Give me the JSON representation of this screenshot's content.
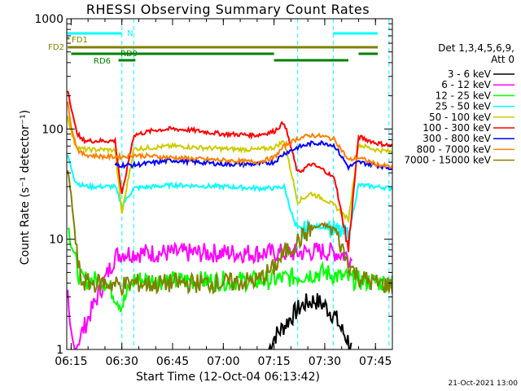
{
  "chart_data": {
    "type": "line",
    "title": "RHESSI Observing Summary Count Rates",
    "xlabel": "Start Time (12-Oct-04 06:13:42)",
    "ylabel": "Count Rate (s⁻¹ detector⁻¹)",
    "yscale": "log",
    "ylim": [
      1,
      1000
    ],
    "xlim": [
      "06:13:42",
      "07:50:00"
    ],
    "x_ticks": [
      "06:15",
      "06:30",
      "06:45",
      "07:00",
      "07:15",
      "07:30",
      "07:45"
    ],
    "y_ticks": [
      "1",
      "10",
      "100",
      "1000"
    ],
    "legend_title": [
      "Det 1,3,4,5,6,9,",
      "Att 0"
    ],
    "legend_position": "right",
    "footer": "21-Oct-2021 13:00",
    "flags": [
      {
        "label": "N",
        "color": "#00ffff",
        "intervals": [
          [
            "06:13:42",
            "06:30:00"
          ],
          [
            "07:32:30",
            "07:50:00"
          ]
        ]
      },
      {
        "label": "FD1",
        "color": "#808000",
        "intervals": [
          [
            "06:13:42",
            "06:14:30"
          ]
        ]
      },
      {
        "label": "FD2",
        "color": "#808000",
        "intervals": [
          [
            "06:14:00",
            "07:50:00"
          ]
        ]
      },
      {
        "label": "RD9",
        "color": "#008000",
        "intervals": [
          [
            "06:15:00",
            "07:15:00"
          ],
          [
            "07:40:00",
            "07:50:00"
          ]
        ]
      },
      {
        "label": "RD6",
        "color": "#008000",
        "intervals": [
          [
            "06:29:00",
            "06:34:00"
          ],
          [
            "07:15:00",
            "07:37:00"
          ]
        ]
      }
    ],
    "night_boundaries": [
      "06:30:00",
      "06:33:30",
      "07:22:00",
      "07:32:30",
      "07:49:00"
    ],
    "gaps": [
      [
        "06:30:00",
        "06:33:30"
      ],
      [
        "07:32:30",
        "07:37:00"
      ]
    ],
    "series": [
      {
        "name": "3 - 6 keV",
        "color": "#000000",
        "x": [
          "07:13:30",
          "07:15:00",
          "07:17:00",
          "07:19:00",
          "07:22:00",
          "07:24:00",
          "07:27:00",
          "07:30:00",
          "07:33:00",
          "07:35:00",
          "07:37:00",
          "07:38:00"
        ],
        "y": [
          1.0,
          1.3,
          1.5,
          1.8,
          2.3,
          2.6,
          2.8,
          2.5,
          2.0,
          1.5,
          1.2,
          1.0
        ]
      },
      {
        "name": "6 - 12 keV",
        "color": "#ff00ff",
        "x": [
          "06:14:00",
          "06:14:30",
          "06:15:30",
          "06:16:00",
          "06:28:00",
          "06:30:00",
          "06:33:30",
          "06:45:00",
          "07:00:00",
          "07:10:00",
          "07:15:00",
          "07:22:00",
          "07:28:00",
          "07:33:00",
          "07:37:00",
          "07:38:00"
        ],
        "y": [
          3.0,
          1.5,
          1.1,
          1.0,
          7.0,
          7.5,
          7.5,
          7.5,
          7.5,
          7.5,
          7.5,
          7.5,
          7.8,
          7.6,
          7.0,
          6.5
        ]
      },
      {
        "name": "12 - 25 keV",
        "color": "#00ff00",
        "x": [
          "06:14:00",
          "06:15:00",
          "06:16:00",
          "06:17:00",
          "06:18:00",
          "06:25:00",
          "06:30:00",
          "06:33:30",
          "06:45:00",
          "07:00:00",
          "07:10:00",
          "07:15:00",
          "07:20:00",
          "07:25:00",
          "07:30:00",
          "07:35:00",
          "07:40:00",
          "07:50:00"
        ],
        "y": [
          13,
          10,
          7,
          5,
          4.3,
          4.2,
          2.5,
          4.3,
          4.2,
          4.2,
          4.2,
          4.3,
          4.5,
          4.8,
          5.0,
          4.5,
          4.2,
          4.0
        ]
      },
      {
        "name": "25 - 50 keV",
        "color": "#00ffff",
        "x": [
          "06:14:00",
          "06:15:00",
          "06:16:00",
          "06:17:00",
          "06:18:00",
          "06:20:00",
          "06:25:00",
          "06:28:00",
          "06:30:00",
          "06:33:30",
          "06:45:00",
          "07:00:00",
          "07:10:00",
          "07:15:00",
          "07:18:00",
          "07:22:00",
          "07:26:00",
          "07:30:00",
          "07:33:00",
          "07:37:00",
          "07:40:00",
          "07:45:00",
          "07:50:00"
        ],
        "y": [
          58,
          45,
          35,
          32,
          31,
          30,
          30,
          30,
          20,
          29,
          31,
          30,
          29,
          29,
          30,
          11,
          13,
          13,
          12,
          11,
          31,
          30,
          29
        ]
      },
      {
        "name": "50 - 100 keV",
        "color": "#cccc00",
        "x": [
          "06:14:00",
          "06:15:00",
          "06:16:00",
          "06:17:00",
          "06:18:00",
          "06:20:00",
          "06:25:00",
          "06:28:00",
          "06:30:00",
          "06:33:30",
          "06:45:00",
          "07:00:00",
          "07:10:00",
          "07:15:00",
          "07:18:00",
          "07:22:00",
          "07:26:00",
          "07:30:00",
          "07:33:00",
          "07:37:00",
          "07:40:00",
          "07:45:00",
          "07:50:00"
        ],
        "y": [
          130,
          95,
          75,
          68,
          66,
          65,
          65,
          64,
          17,
          66,
          70,
          66,
          65,
          68,
          78,
          22,
          26,
          23,
          20,
          15,
          72,
          65,
          62
        ]
      },
      {
        "name": "100 - 300 keV",
        "color": "#ff0000",
        "x": [
          "06:14:00",
          "06:15:00",
          "06:16:00",
          "06:17:00",
          "06:18:00",
          "06:20:00",
          "06:25:00",
          "06:28:00",
          "06:30:00",
          "06:33:30",
          "06:40:00",
          "06:45:00",
          "06:50:00",
          "07:00:00",
          "07:10:00",
          "07:15:00",
          "07:18:00",
          "07:22:00",
          "07:26:00",
          "07:30:00",
          "07:33:00",
          "07:37:00",
          "07:40:00",
          "07:45:00",
          "07:50:00"
        ],
        "y": [
          230,
          160,
          110,
          90,
          80,
          78,
          78,
          78,
          25,
          88,
          98,
          100,
          98,
          90,
          88,
          95,
          115,
          40,
          48,
          42,
          35,
          8,
          85,
          75,
          70
        ]
      },
      {
        "name": "300 - 800 keV",
        "color": "#0000ff",
        "x": [
          "06:28:00",
          "06:30:00",
          "06:33:30",
          "06:45:00",
          "07:00:00",
          "07:10:00",
          "07:15:00",
          "07:18:00",
          "07:22:00",
          "07:26:00",
          "07:30:00",
          "07:33:00",
          "07:37:00",
          "07:40:00",
          "07:45:00",
          "07:50:00"
        ],
        "y": [
          47,
          47,
          47,
          52,
          48,
          48,
          50,
          60,
          68,
          74,
          75,
          70,
          45,
          50,
          47,
          44
        ]
      },
      {
        "name": "800 - 7000 keV",
        "color": "#ff8000",
        "x": [
          "06:14:00",
          "06:15:00",
          "06:16:00",
          "06:17:00",
          "06:18:00",
          "06:20:00",
          "06:25:00",
          "06:28:00",
          "06:30:00",
          "06:33:30",
          "06:45:00",
          "07:00:00",
          "07:10:00",
          "07:15:00",
          "07:18:00",
          "07:22:00",
          "07:26:00",
          "07:30:00",
          "07:33:00",
          "07:37:00",
          "07:40:00",
          "07:45:00",
          "07:50:00"
        ],
        "y": [
          170,
          110,
          80,
          65,
          60,
          58,
          56,
          56,
          56,
          58,
          55,
          52,
          50,
          55,
          70,
          82,
          88,
          85,
          80,
          52,
          55,
          48,
          45
        ]
      },
      {
        "name": "7000 - 15000 keV",
        "color": "#808000",
        "x": [
          "06:14:00",
          "06:15:00",
          "06:16:00",
          "06:17:00",
          "06:18:00",
          "06:20:00",
          "06:25:00",
          "06:30:00",
          "06:33:30",
          "06:40:00",
          "06:45:00",
          "07:00:00",
          "07:10:00",
          "07:15:00",
          "07:18:00",
          "07:22:00",
          "07:26:00",
          "07:30:00",
          "07:33:00",
          "07:37:00",
          "07:40:00",
          "07:45:00",
          "07:50:00"
        ],
        "y": [
          42,
          25,
          12,
          6,
          4.2,
          4.0,
          4.0,
          3.8,
          4.0,
          3.9,
          4.0,
          4.0,
          4.2,
          5.5,
          7.5,
          9.5,
          12.5,
          13.5,
          12,
          6,
          4.5,
          4.0,
          3.8
        ]
      }
    ]
  }
}
